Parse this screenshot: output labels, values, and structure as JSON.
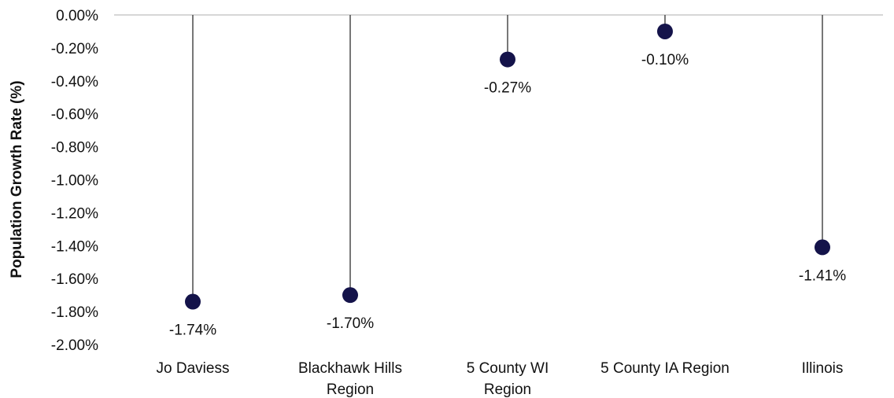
{
  "chart_data": {
    "type": "lollipop",
    "ylabel": "Population Growth Rate (%)",
    "xlabel": "",
    "title": "",
    "ylim": [
      -2.0,
      0.0
    ],
    "yticks": [
      0,
      -0.2,
      -0.4,
      -0.6,
      -0.8,
      -1.0,
      -1.2,
      -1.4,
      -1.6,
      -1.8,
      -2.0
    ],
    "ytick_labels": [
      "0.00%",
      "-0.20%",
      "-0.40%",
      "-0.60%",
      "-0.80%",
      "-1.00%",
      "-1.20%",
      "-1.40%",
      "-1.60%",
      "-1.80%",
      "-2.00%"
    ],
    "categories": [
      [
        "Jo Daviess"
      ],
      [
        "Blackhawk Hills",
        "Region"
      ],
      [
        "5 County WI",
        "Region"
      ],
      [
        "5 County IA Region"
      ],
      [
        "Illinois"
      ]
    ],
    "values": [
      -1.74,
      -1.7,
      -0.27,
      -0.1,
      -1.41
    ],
    "value_labels": [
      "-1.74%",
      "-1.70%",
      "-0.27%",
      "-0.10%",
      "-1.41%"
    ],
    "colors": {
      "marker": "#14134a",
      "stem": "#4a4a4a",
      "baseline": "#c8c8c8"
    },
    "grid": false,
    "legend": "none"
  }
}
